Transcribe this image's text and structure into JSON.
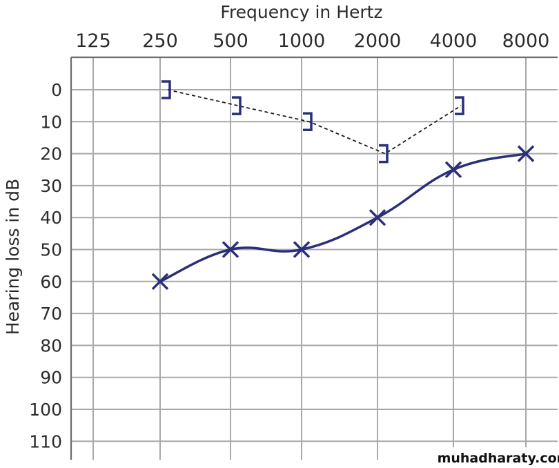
{
  "chart_data": {
    "type": "line",
    "title": "",
    "xlabel": "Frequency in Hertz",
    "ylabel": "Hearing loss in dB",
    "x_ticks": [
      "125",
      "250",
      "500",
      "1000",
      "2000",
      "4000",
      "8000"
    ],
    "y_ticks": [
      0,
      10,
      20,
      30,
      40,
      50,
      60,
      70,
      80,
      90,
      100,
      110
    ],
    "ylim": [
      -10,
      110
    ],
    "y_inverted": true,
    "x_scale": "log",
    "grid": true,
    "legend": "none",
    "series": [
      {
        "marker": "bracket",
        "line_style": "dashed",
        "color": "#2a2f7a",
        "points": [
          {
            "x": "250",
            "y": 0
          },
          {
            "x": "500",
            "y": 5
          },
          {
            "x": "1000",
            "y": 10
          },
          {
            "x": "2000",
            "y": 20
          },
          {
            "x": "4000",
            "y": 5
          }
        ]
      },
      {
        "marker": "x",
        "line_style": "solid",
        "color": "#2a2f7a",
        "points": [
          {
            "x": "250",
            "y": 60
          },
          {
            "x": "500",
            "y": 50
          },
          {
            "x": "1000",
            "y": 50
          },
          {
            "x": "2000",
            "y": 40
          },
          {
            "x": "4000",
            "y": 25
          },
          {
            "x": "8000",
            "y": 20
          }
        ]
      }
    ]
  },
  "watermark": "muhadharaty.com"
}
